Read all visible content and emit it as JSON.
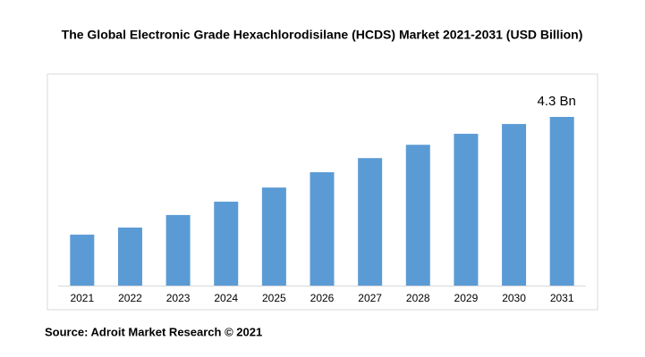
{
  "chart_data": {
    "type": "bar",
    "title": "The Global Electronic Grade Hexachlorodisilane (HCDS) Market 2021-2031 (USD Billion)",
    "categories": [
      "2021",
      "2022",
      "2023",
      "2024",
      "2025",
      "2026",
      "2027",
      "2028",
      "2029",
      "2030",
      "2031"
    ],
    "values": [
      1.3,
      1.48,
      1.8,
      2.14,
      2.5,
      2.89,
      3.25,
      3.59,
      3.87,
      4.12,
      4.3
    ],
    "value_labels": [
      null,
      null,
      null,
      null,
      null,
      null,
      null,
      null,
      null,
      null,
      "4.3 Bn"
    ],
    "color": "#5b9bd5",
    "source": "Source: Adroit Market Research © 2021"
  }
}
